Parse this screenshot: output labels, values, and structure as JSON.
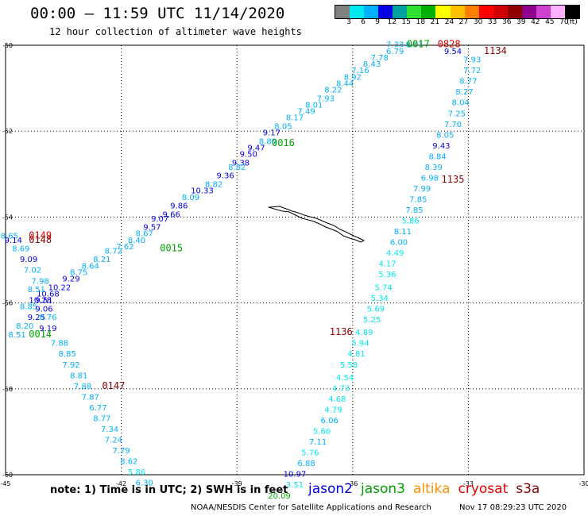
{
  "header": {
    "title": "00:00 – 11:59 UTC 11/14/2020",
    "subtitle": "12 hour collection of altimeter wave heights"
  },
  "legend": {
    "colors": [
      "#808080",
      "#00e8f0",
      "#00b0ff",
      "#0000e0",
      "#00a0a0",
      "#30e030",
      "#00b000",
      "#ffff00",
      "#ffc000",
      "#ff8000",
      "#ff0000",
      "#d00000",
      "#900000",
      "#900090",
      "#d040d0",
      "#ffb0ff",
      "#000000"
    ],
    "labels": [
      "3",
      "6",
      "9",
      "12",
      "15",
      "18",
      "21",
      "24",
      "27",
      "30",
      "33",
      "36",
      "39",
      "42",
      "45",
      "70",
      "(ft)"
    ]
  },
  "axes": {
    "lon_ticks": [
      "-45",
      "-42",
      "-39",
      "-36",
      "-33",
      "-30"
    ],
    "lat_ticks": [
      "-50",
      "-52",
      "-54",
      "-56",
      "-58",
      "-60"
    ],
    "lon_range": [
      -45,
      -30
    ],
    "lat_range": [
      -60,
      -50
    ]
  },
  "passes": [
    {
      "label": "0017",
      "sat": "jason3",
      "lon": -34.3,
      "lat": -50.05
    },
    {
      "label": "0828",
      "sat": "cryosat",
      "lon": -33.5,
      "lat": -50.05
    },
    {
      "label": "1134",
      "sat": "s3a",
      "lon": -32.3,
      "lat": -50.2
    },
    {
      "label": "0016",
      "sat": "jason3",
      "lon": -37.8,
      "lat": -52.35
    },
    {
      "label": "1135",
      "sat": "s3a",
      "lon": -33.4,
      "lat": -53.2
    },
    {
      "label": "0149",
      "sat": "cryosat",
      "lon": -44.1,
      "lat": -54.5
    },
    {
      "label": "0148",
      "sat": "s3a",
      "lon": -44.1,
      "lat": -54.6
    },
    {
      "label": "0015",
      "sat": "jason3",
      "lon": -40.7,
      "lat": -54.8
    },
    {
      "label": "0014",
      "sat": "jason3",
      "lon": -44.1,
      "lat": -56.8
    },
    {
      "label": "1136",
      "sat": "s3a",
      "lon": -36.3,
      "lat": -56.75
    },
    {
      "label": "0147",
      "sat": "s3a",
      "lon": -42.2,
      "lat": -58.0
    }
  ],
  "observations": [
    {
      "v": "7.33",
      "lon": -34.9,
      "lat": -50.05
    },
    {
      "v": "8.01",
      "lon": -34.4,
      "lat": -50.05
    },
    {
      "v": "9.54",
      "lon": -33.4,
      "lat": -50.2
    },
    {
      "v": "6.79",
      "lon": -34.9,
      "lat": -50.2
    },
    {
      "v": "7.78",
      "lon": -35.3,
      "lat": -50.35
    },
    {
      "v": "8.43",
      "lon": -35.5,
      "lat": -50.5
    },
    {
      "v": "7.16",
      "lon": -35.8,
      "lat": -50.65
    },
    {
      "v": "8.92",
      "lon": -36.0,
      "lat": -50.8
    },
    {
      "v": "8.44",
      "lon": -36.2,
      "lat": -50.95
    },
    {
      "v": "8.22",
      "lon": -36.5,
      "lat": -51.1
    },
    {
      "v": "7.93",
      "lon": -36.7,
      "lat": -51.3
    },
    {
      "v": "8.01",
      "lon": -37.0,
      "lat": -51.45
    },
    {
      "v": "7.49",
      "lon": -37.2,
      "lat": -51.6
    },
    {
      "v": "8.17",
      "lon": -37.5,
      "lat": -51.75
    },
    {
      "v": "8.05",
      "lon": -37.8,
      "lat": -51.95
    },
    {
      "v": "9.17",
      "lon": -38.1,
      "lat": -52.1
    },
    {
      "v": "8.80",
      "lon": -38.2,
      "lat": -52.3
    },
    {
      "v": "9.47",
      "lon": -38.5,
      "lat": -52.45
    },
    {
      "v": "9.50",
      "lon": -38.7,
      "lat": -52.6
    },
    {
      "v": "9.38",
      "lon": -38.9,
      "lat": -52.8
    },
    {
      "v": "8.82",
      "lon": -39.0,
      "lat": -52.9
    },
    {
      "v": "9.36",
      "lon": -39.3,
      "lat": -53.1
    },
    {
      "v": "8.82",
      "lon": -39.6,
      "lat": -53.3
    },
    {
      "v": "10.33",
      "lon": -39.9,
      "lat": -53.45
    },
    {
      "v": "8.09",
      "lon": -40.2,
      "lat": -53.6
    },
    {
      "v": "9.86",
      "lon": -40.5,
      "lat": -53.8
    },
    {
      "v": "9.66",
      "lon": -40.7,
      "lat": -54.0
    },
    {
      "v": "9.07",
      "lon": -41.0,
      "lat": -54.1
    },
    {
      "v": "9.57",
      "lon": -41.2,
      "lat": -54.3
    },
    {
      "v": "8.67",
      "lon": -41.4,
      "lat": -54.45
    },
    {
      "v": "8.40",
      "lon": -41.6,
      "lat": -54.6
    },
    {
      "v": "7.62",
      "lon": -41.9,
      "lat": -54.75
    },
    {
      "v": "8.72",
      "lon": -42.2,
      "lat": -54.85
    },
    {
      "v": "8.21",
      "lon": -42.5,
      "lat": -55.05
    },
    {
      "v": "8.64",
      "lon": -42.8,
      "lat": -55.2
    },
    {
      "v": "8.75",
      "lon": -43.1,
      "lat": -55.35
    },
    {
      "v": "9.29",
      "lon": -43.3,
      "lat": -55.5
    },
    {
      "v": "10.22",
      "lon": -43.6,
      "lat": -55.7
    },
    {
      "v": "10.68",
      "lon": -43.9,
      "lat": -55.85
    },
    {
      "v": "10.28",
      "lon": -44.1,
      "lat": -56.0
    },
    {
      "v": "8.85",
      "lon": -44.4,
      "lat": -56.15
    },
    {
      "v": "9.19",
      "lon": -43.9,
      "lat": -56.65
    },
    {
      "v": "8.65",
      "lon": -44.9,
      "lat": -54.5
    },
    {
      "v": "9.14",
      "lon": -44.8,
      "lat": -54.6
    },
    {
      "v": "8.69",
      "lon": -44.6,
      "lat": -54.8
    },
    {
      "v": "9.09",
      "lon": -44.4,
      "lat": -55.05
    },
    {
      "v": "7.02",
      "lon": -44.3,
      "lat": -55.3
    },
    {
      "v": "7.98",
      "lon": -44.1,
      "lat": -55.55
    },
    {
      "v": "8.51",
      "lon": -44.2,
      "lat": -55.75
    },
    {
      "v": "9.51",
      "lon": -44.0,
      "lat": -56.0
    },
    {
      "v": "9.06",
      "lon": -44.0,
      "lat": -56.2
    },
    {
      "v": "9.25",
      "lon": -44.2,
      "lat": -56.4
    },
    {
      "v": "8.76",
      "lon": -43.9,
      "lat": -56.4
    },
    {
      "v": "8.20",
      "lon": -44.5,
      "lat": -56.6
    },
    {
      "v": "8.51",
      "lon": -44.7,
      "lat": -56.8
    },
    {
      "v": "7.88",
      "lon": -43.6,
      "lat": -57.0
    },
    {
      "v": "8.85",
      "lon": -43.4,
      "lat": -57.25
    },
    {
      "v": "7.92",
      "lon": -43.3,
      "lat": -57.5
    },
    {
      "v": "8.81",
      "lon": -43.1,
      "lat": -57.75
    },
    {
      "v": "7.88",
      "lon": -43.0,
      "lat": -58.0
    },
    {
      "v": "7.87",
      "lon": -42.8,
      "lat": -58.25
    },
    {
      "v": "6.77",
      "lon": -42.6,
      "lat": -58.5
    },
    {
      "v": "8.77",
      "lon": -42.5,
      "lat": -58.75
    },
    {
      "v": "7.34",
      "lon": -42.3,
      "lat": -59.0
    },
    {
      "v": "7.24",
      "lon": -42.2,
      "lat": -59.25
    },
    {
      "v": "7.79",
      "lon": -42.0,
      "lat": -59.5
    },
    {
      "v": "8.62",
      "lon": -41.8,
      "lat": -59.75
    },
    {
      "v": "5.86",
      "lon": -41.6,
      "lat": -60.0
    },
    {
      "v": "6.30",
      "lon": -41.4,
      "lat": -60.25
    },
    {
      "v": "7.93",
      "lon": -32.9,
      "lat": -50.4
    },
    {
      "v": "7.72",
      "lon": -32.9,
      "lat": -50.65
    },
    {
      "v": "8.77",
      "lon": -33.0,
      "lat": -50.9
    },
    {
      "v": "8.27",
      "lon": -33.1,
      "lat": -51.15
    },
    {
      "v": "8.04",
      "lon": -33.2,
      "lat": -51.4
    },
    {
      "v": "7.25",
      "lon": -33.3,
      "lat": -51.65
    },
    {
      "v": "7.70",
      "lon": -33.4,
      "lat": -51.9
    },
    {
      "v": "8.05",
      "lon": -33.6,
      "lat": -52.15
    },
    {
      "v": "9.43",
      "lon": -33.7,
      "lat": -52.4
    },
    {
      "v": "8.84",
      "lon": -33.8,
      "lat": -52.65
    },
    {
      "v": "8.39",
      "lon": -33.9,
      "lat": -52.9
    },
    {
      "v": "6.98",
      "lon": -34.0,
      "lat": -53.15
    },
    {
      "v": "7.99",
      "lon": -34.2,
      "lat": -53.4
    },
    {
      "v": "7.85",
      "lon": -34.3,
      "lat": -53.65
    },
    {
      "v": "7.85",
      "lon": -34.4,
      "lat": -53.9
    },
    {
      "v": "5.86",
      "lon": -34.5,
      "lat": -54.15
    },
    {
      "v": "8.11",
      "lon": -34.7,
      "lat": -54.4
    },
    {
      "v": "6.00",
      "lon": -34.8,
      "lat": -54.65
    },
    {
      "v": "4.49",
      "lon": -34.9,
      "lat": -54.9
    },
    {
      "v": "4.17",
      "lon": -35.1,
      "lat": -55.15
    },
    {
      "v": "5.36",
      "lon": -35.1,
      "lat": -55.4
    },
    {
      "v": "5.74",
      "lon": -35.2,
      "lat": -55.7
    },
    {
      "v": "5.34",
      "lon": -35.3,
      "lat": -55.95
    },
    {
      "v": "5.69",
      "lon": -35.4,
      "lat": -56.2
    },
    {
      "v": "5.25",
      "lon": -35.5,
      "lat": -56.45
    },
    {
      "v": "4.89",
      "lon": -35.7,
      "lat": -56.75
    },
    {
      "v": "5.94",
      "lon": -35.8,
      "lat": -57.0
    },
    {
      "v": "4.81",
      "lon": -35.9,
      "lat": -57.25
    },
    {
      "v": "5.58",
      "lon": -36.1,
      "lat": -57.5
    },
    {
      "v": "4.54",
      "lon": -36.2,
      "lat": -57.8
    },
    {
      "v": "4.73",
      "lon": -36.3,
      "lat": -58.05
    },
    {
      "v": "4.68",
      "lon": -36.4,
      "lat": -58.3
    },
    {
      "v": "4.79",
      "lon": -36.5,
      "lat": -58.55
    },
    {
      "v": "6.06",
      "lon": -36.6,
      "lat": -58.8
    },
    {
      "v": "5.66",
      "lon": -36.8,
      "lat": -59.05
    },
    {
      "v": "7.11",
      "lon": -36.9,
      "lat": -59.3
    },
    {
      "v": "5.76",
      "lon": -37.1,
      "lat": -59.55
    },
    {
      "v": "6.88",
      "lon": -37.2,
      "lat": -59.8
    },
    {
      "v": "10.97",
      "lon": -37.5,
      "lat": -60.05
    },
    {
      "v": "3.51",
      "lon": -37.5,
      "lat": -60.3
    },
    {
      "v": "20.09",
      "lon": -37.9,
      "lat": -60.55
    }
  ],
  "footer": {
    "note": "note: 1) Time is in UTC; 2) SWH is in feet",
    "satellites": [
      {
        "name": "jason2",
        "color": "#0000e0"
      },
      {
        "name": "jason3",
        "color": "#00a000"
      },
      {
        "name": "altika",
        "color": "#ff9000"
      },
      {
        "name": "cryosat",
        "color": "#e00000"
      },
      {
        "name": "s3a",
        "color": "#900000"
      }
    ],
    "credit": "NOAA/NESDIS Center for Satellite Applications and Research",
    "timestamp": "Nov 17 08:29:23 UTC 2020"
  }
}
